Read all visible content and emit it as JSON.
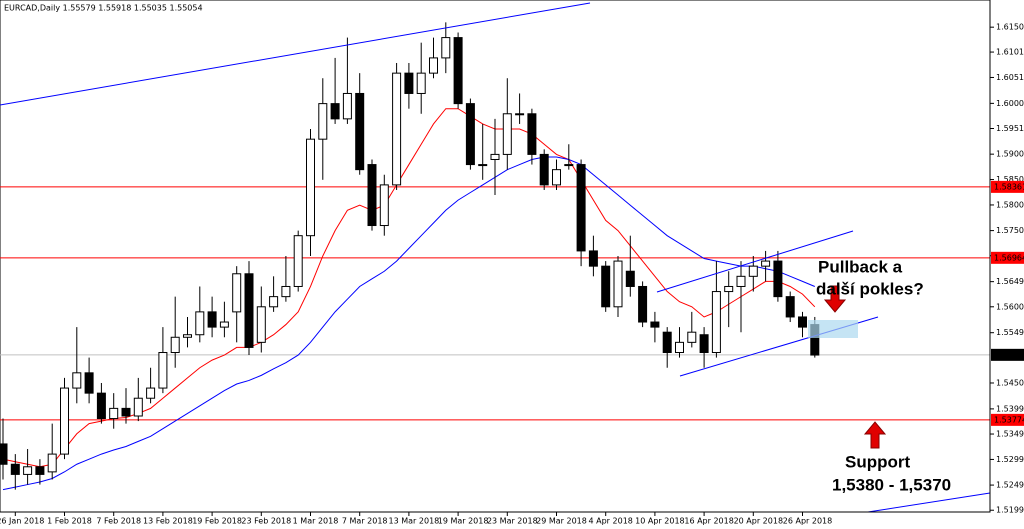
{
  "chart_data": {
    "type": "candlestick",
    "header": "EURCAD,Daily  1.55579 1.55918 1.55035 1.55054",
    "categories": [
      null,
      "26 Jan 2018",
      null,
      null,
      null,
      "1 Feb 2018",
      null,
      null,
      null,
      "7 Feb 2018",
      null,
      null,
      null,
      "13 Feb 2018",
      null,
      null,
      null,
      "19 Feb 2018",
      null,
      null,
      null,
      "23 Feb 2018",
      null,
      null,
      null,
      "1 Mar 2018",
      null,
      null,
      null,
      "7 Mar 2018",
      null,
      null,
      null,
      "13 Mar 2018",
      null,
      null,
      null,
      "19 Mar 2018",
      null,
      null,
      null,
      "23 Mar 2018",
      null,
      null,
      null,
      "29 Mar 2018",
      null,
      null,
      null,
      "4 Apr 2018",
      null,
      null,
      null,
      "10 Apr 2018",
      null,
      null,
      null,
      "16 Apr 2018",
      null,
      null,
      null,
      "20 Apr 2018",
      null,
      null,
      null,
      "26 Apr 2018",
      null
    ],
    "open": [
      1.533,
      1.529,
      1.527,
      1.5285,
      1.5275,
      1.531,
      1.544,
      1.547,
      1.543,
      1.538,
      1.54,
      1.5385,
      1.542,
      1.544,
      1.551,
      1.554,
      1.5545,
      1.559,
      1.556,
      1.559,
      1.5665,
      1.553,
      1.56,
      1.562,
      1.564,
      1.574,
      1.593,
      1.6,
      1.597,
      1.602,
      1.588,
      1.576,
      1.584,
      1.606,
      1.602,
      1.606,
      1.609,
      1.613,
      1.6,
      1.588,
      1.589,
      1.59,
      1.598,
      1.598,
      1.59,
      1.584,
      1.588,
      1.588,
      1.571,
      1.568,
      1.56,
      1.567,
      1.564,
      1.557,
      1.555,
      1.551,
      1.553,
      1.5545,
      1.551,
      1.563,
      1.564,
      1.566,
      1.568,
      1.569,
      1.562,
      1.558,
      1.5565
    ],
    "high": [
      1.538,
      1.531,
      1.532,
      1.53,
      1.537,
      1.546,
      1.556,
      1.55,
      1.545,
      1.543,
      1.544,
      1.546,
      1.548,
      1.556,
      1.562,
      1.558,
      1.564,
      1.562,
      1.561,
      1.568,
      1.569,
      1.564,
      1.566,
      1.57,
      1.575,
      1.595,
      1.605,
      1.609,
      1.613,
      1.606,
      1.589,
      1.586,
      1.608,
      1.608,
      1.612,
      1.613,
      1.616,
      1.614,
      1.601,
      1.596,
      1.597,
      1.605,
      1.602,
      1.599,
      1.591,
      1.589,
      1.592,
      1.589,
      1.574,
      1.569,
      1.57,
      1.574,
      1.565,
      1.559,
      1.556,
      1.556,
      1.559,
      1.556,
      1.569,
      1.567,
      1.569,
      1.57,
      1.571,
      1.571,
      1.563,
      1.559,
      1.558
    ],
    "low": [
      1.526,
      1.524,
      1.525,
      1.525,
      1.526,
      1.53,
      1.541,
      1.541,
      1.537,
      1.536,
      1.537,
      1.5375,
      1.541,
      1.543,
      1.548,
      1.552,
      1.553,
      1.554,
      1.554,
      1.553,
      1.5505,
      1.551,
      1.559,
      1.561,
      1.563,
      1.57,
      1.585,
      1.596,
      1.596,
      1.586,
      1.575,
      1.574,
      1.583,
      1.599,
      1.598,
      1.605,
      1.606,
      1.599,
      1.587,
      1.585,
      1.582,
      1.587,
      1.596,
      1.588,
      1.583,
      1.583,
      1.587,
      1.568,
      1.566,
      1.559,
      1.558,
      1.562,
      1.556,
      1.553,
      1.548,
      1.55,
      1.552,
      1.548,
      1.55,
      1.556,
      1.555,
      1.563,
      1.565,
      1.561,
      1.557,
      1.554,
      1.55
    ],
    "close": [
      1.529,
      1.527,
      1.5285,
      1.527,
      1.531,
      1.544,
      1.547,
      1.543,
      1.538,
      1.54,
      1.5385,
      1.542,
      1.544,
      1.551,
      1.554,
      1.5545,
      1.559,
      1.556,
      1.557,
      1.5665,
      1.552,
      1.56,
      1.562,
      1.564,
      1.574,
      1.593,
      1.6,
      1.597,
      1.602,
      1.587,
      1.576,
      1.584,
      1.606,
      1.602,
      1.606,
      1.609,
      1.613,
      1.6,
      1.588,
      1.588,
      1.59,
      1.598,
      1.598,
      1.59,
      1.584,
      1.587,
      1.588,
      1.571,
      1.568,
      1.56,
      1.569,
      1.564,
      1.557,
      1.556,
      1.551,
      1.553,
      1.555,
      1.551,
      1.563,
      1.564,
      1.566,
      1.568,
      1.569,
      1.562,
      1.558,
      1.556,
      1.5505
    ],
    "lines": [
      {
        "color": "#ff0000",
        "values": [
          1.53,
          1.5295,
          1.529,
          1.5285,
          1.529,
          1.532,
          1.535,
          1.537,
          1.5375,
          1.538,
          1.5382,
          1.539,
          1.54,
          1.542,
          1.544,
          1.546,
          1.548,
          1.5495,
          1.5505,
          1.552,
          1.552,
          1.553,
          1.5545,
          1.5565,
          1.559,
          1.564,
          1.57,
          1.575,
          1.579,
          1.58,
          1.579,
          1.58,
          1.584,
          1.588,
          1.592,
          1.596,
          1.599,
          1.599,
          1.5975,
          1.596,
          1.595,
          1.595,
          1.595,
          1.594,
          1.592,
          1.59,
          1.589,
          1.585,
          1.581,
          1.577,
          1.575,
          1.572,
          1.569,
          1.566,
          1.563,
          1.561,
          1.56,
          1.558,
          1.559,
          1.5605,
          1.562,
          1.5635,
          1.565,
          1.565,
          1.564,
          1.5625,
          1.56
        ]
      },
      {
        "color": "#0000ff",
        "values": [
          1.524,
          1.5245,
          1.525,
          1.5255,
          1.5262,
          1.5275,
          1.529,
          1.53,
          1.531,
          1.5318,
          1.5325,
          1.5335,
          1.5345,
          1.536,
          1.5375,
          1.539,
          1.5405,
          1.542,
          1.5435,
          1.5448,
          1.5455,
          1.5465,
          1.5478,
          1.549,
          1.5505,
          1.553,
          1.556,
          1.559,
          1.5615,
          1.564,
          1.5655,
          1.567,
          1.569,
          1.5715,
          1.574,
          1.5765,
          1.579,
          1.581,
          1.5825,
          1.584,
          1.5855,
          1.587,
          1.588,
          1.589,
          1.5895,
          1.5895,
          1.589,
          1.588,
          1.586,
          1.584,
          1.582,
          1.58,
          1.578,
          1.576,
          1.574,
          1.5725,
          1.571,
          1.5695,
          1.569,
          1.5685,
          1.568,
          1.568,
          1.5675,
          1.567,
          1.566,
          1.565,
          1.564
        ]
      }
    ],
    "levels": [
      {
        "value": 1.58361,
        "color": "#ff0000"
      },
      {
        "value": 1.56964,
        "color": "#ff0000"
      },
      {
        "value": 1.53774,
        "color": "#ff0000"
      },
      {
        "value": 1.55054,
        "color": "#c0c0c0"
      }
    ],
    "ylim": [
      1.5196,
      1.6204
    ],
    "yticks": [
      1.61505,
      1.61015,
      1.60515,
      1.60005,
      {
        "value": 1.5951,
        "label": "1.59510"
      },
      1.59005,
      1.58505,
      1.58005,
      {
        "value": 1.575,
        "label": "1.57500"
      },
      1.57005,
      1.56495,
      {
        "value": 1.56,
        "label": "1.56000"
      },
      {
        "value": 1.5549,
        "label": "1.55490"
      },
      {
        "value": 1.545,
        "label": "1.54500"
      },
      {
        "value": 1.5399,
        "label": "1.53990"
      },
      1.53495,
      1.52995,
      1.5249,
      1.51995
    ],
    "annotations": [
      "Pullback a",
      "další pokles?",
      "Support",
      "1,5380 - 1,5370"
    ]
  }
}
